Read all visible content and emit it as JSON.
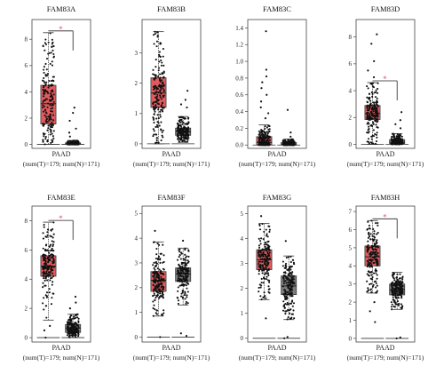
{
  "colors": {
    "tumor": "#e05a5e",
    "normal": "#7d7d7d",
    "point": "#111111",
    "star": "#e0556c",
    "frame": "#444444"
  },
  "chart_data": [
    {
      "type": "box",
      "title": "FAM83A",
      "xlabel": "PAAD",
      "sub": "(num(T)=179; num(N)=171)",
      "yticks": [
        "0",
        "2",
        "4",
        "6",
        "8"
      ],
      "ylim": [
        -0.3,
        9.5
      ],
      "significance": "*",
      "series": [
        {
          "name": "T",
          "n": 179,
          "min": 0,
          "q1": 1.55,
          "median": 3.1,
          "q3": 4.5,
          "max": 8.5,
          "outliers": []
        },
        {
          "name": "N",
          "n": 171,
          "min": 0,
          "q1": 0.0,
          "median": 0.05,
          "q3": 0.12,
          "max": 0.3,
          "outliers": [
            2.8,
            2.4,
            1.8,
            1.2,
            0.9,
            0.6
          ]
        }
      ]
    },
    {
      "type": "box",
      "title": "FAM83B",
      "xlabel": "PAAD",
      "sub": "(num(T)=179; num(N)=171)",
      "yticks": [
        "0",
        "1",
        "2",
        "3"
      ],
      "ylim": [
        -0.15,
        4.1
      ],
      "series": [
        {
          "name": "T",
          "n": 179,
          "min": 0,
          "q1": 1.2,
          "median": 1.68,
          "q3": 2.18,
          "max": 3.7,
          "outliers": []
        },
        {
          "name": "N",
          "n": 171,
          "min": 0.05,
          "q1": 0.28,
          "median": 0.4,
          "q3": 0.52,
          "max": 0.9,
          "outliers": [
            1.75,
            1.45,
            1.3,
            1.2
          ]
        }
      ]
    },
    {
      "type": "box",
      "title": "FAM83C",
      "xlabel": "PAAD",
      "sub": "(num(T)=179; num(N)=171)",
      "yticks": [
        "0.0",
        "0.2",
        "0.4",
        "0.6",
        "0.8",
        "1.0",
        "1.2",
        "1.4"
      ],
      "ylim": [
        -0.04,
        1.5
      ],
      "series": [
        {
          "name": "T",
          "n": 179,
          "min": 0,
          "q1": 0.0,
          "median": 0.03,
          "q3": 0.1,
          "max": 0.24,
          "outliers": [
            0.32,
            0.38,
            0.45,
            0.52,
            0.6,
            0.68,
            0.75,
            0.82,
            0.9,
            1.36
          ]
        },
        {
          "name": "N",
          "n": 171,
          "min": 0,
          "q1": 0.0,
          "median": 0.01,
          "q3": 0.03,
          "max": 0.07,
          "outliers": [
            0.42,
            0.15,
            0.1
          ]
        }
      ]
    },
    {
      "type": "box",
      "title": "FAM83D",
      "xlabel": "PAAD",
      "sub": "(num(T)=179; num(N)=171)",
      "yticks": [
        "0",
        "2",
        "4",
        "6",
        "8"
      ],
      "ylim": [
        -0.3,
        9.3
      ],
      "significance": "*",
      "series": [
        {
          "name": "T",
          "n": 179,
          "min": 0,
          "q1": 1.85,
          "median": 2.3,
          "q3": 2.9,
          "max": 4.6,
          "outliers": [
            5.0,
            5.5,
            6.2,
            7.5,
            8.2
          ]
        },
        {
          "name": "N",
          "n": 171,
          "min": 0,
          "q1": 0.05,
          "median": 0.15,
          "q3": 0.35,
          "max": 0.8,
          "outliers": [
            1.2,
            1.5,
            1.8,
            2.4
          ]
        }
      ]
    },
    {
      "type": "box",
      "title": "FAM83E",
      "xlabel": "PAAD",
      "sub": "(num(T)=179; num(N)=171)",
      "yticks": [
        "0",
        "2",
        "4",
        "6",
        "8"
      ],
      "ylim": [
        -0.3,
        9.0
      ],
      "significance": "*",
      "series": [
        {
          "name": "T",
          "n": 179,
          "min": 1.2,
          "q1": 4.2,
          "median": 4.9,
          "q3": 5.6,
          "max": 7.9,
          "outliers": [
            0.8,
            0.5,
            0.0
          ]
        },
        {
          "name": "N",
          "n": 171,
          "min": 0,
          "q1": 0.35,
          "median": 0.65,
          "q3": 0.9,
          "max": 1.6,
          "outliers": [
            2.0,
            2.4,
            2.8
          ]
        }
      ]
    },
    {
      "type": "box",
      "title": "FAM83F",
      "xlabel": "PAAD",
      "sub": "(num(T)=179; num(N)=171)",
      "yticks": [
        "0",
        "1",
        "2",
        "3",
        "4",
        "5"
      ],
      "ylim": [
        -0.2,
        5.3
      ],
      "series": [
        {
          "name": "T",
          "n": 179,
          "min": 0.85,
          "q1": 1.85,
          "median": 2.3,
          "q3": 2.65,
          "max": 3.85,
          "outliers": [
            0.0,
            4.3
          ]
        },
        {
          "name": "N",
          "n": 171,
          "min": 1.3,
          "q1": 2.25,
          "median": 2.55,
          "q3": 2.8,
          "max": 3.6,
          "outliers": [
            0.05,
            0.15,
            3.9
          ]
        }
      ]
    },
    {
      "type": "box",
      "title": "FAM83G",
      "xlabel": "PAAD",
      "sub": "(num(T)=179; num(N)=171)",
      "yticks": [
        "0",
        "1",
        "2",
        "3",
        "4",
        "5"
      ],
      "ylim": [
        -0.15,
        5.3
      ],
      "series": [
        {
          "name": "T",
          "n": 179,
          "min": 1.55,
          "q1": 2.75,
          "median": 3.15,
          "q3": 3.55,
          "max": 4.6,
          "outliers": [
            0.8,
            4.9
          ]
        },
        {
          "name": "N",
          "n": 171,
          "min": 0.75,
          "q1": 1.75,
          "median": 2.1,
          "q3": 2.5,
          "max": 3.3,
          "outliers": [
            0.0,
            0.05,
            3.9
          ]
        }
      ]
    },
    {
      "type": "box",
      "title": "FAM83H",
      "xlabel": "PAAD",
      "sub": "(num(T)=179; num(N)=171)",
      "yticks": [
        "0",
        "1",
        "2",
        "3",
        "4",
        "5",
        "6",
        "7"
      ],
      "ylim": [
        -0.2,
        7.3
      ],
      "significance": "*",
      "series": [
        {
          "name": "T",
          "n": 179,
          "min": 2.5,
          "q1": 4.0,
          "median": 4.5,
          "q3": 5.1,
          "max": 6.5,
          "outliers": [
            2.0,
            1.5,
            0.9
          ]
        },
        {
          "name": "N",
          "n": 171,
          "min": 1.6,
          "q1": 2.4,
          "median": 2.7,
          "q3": 3.0,
          "max": 3.65,
          "outliers": [
            0.0,
            0.05
          ]
        }
      ]
    }
  ]
}
